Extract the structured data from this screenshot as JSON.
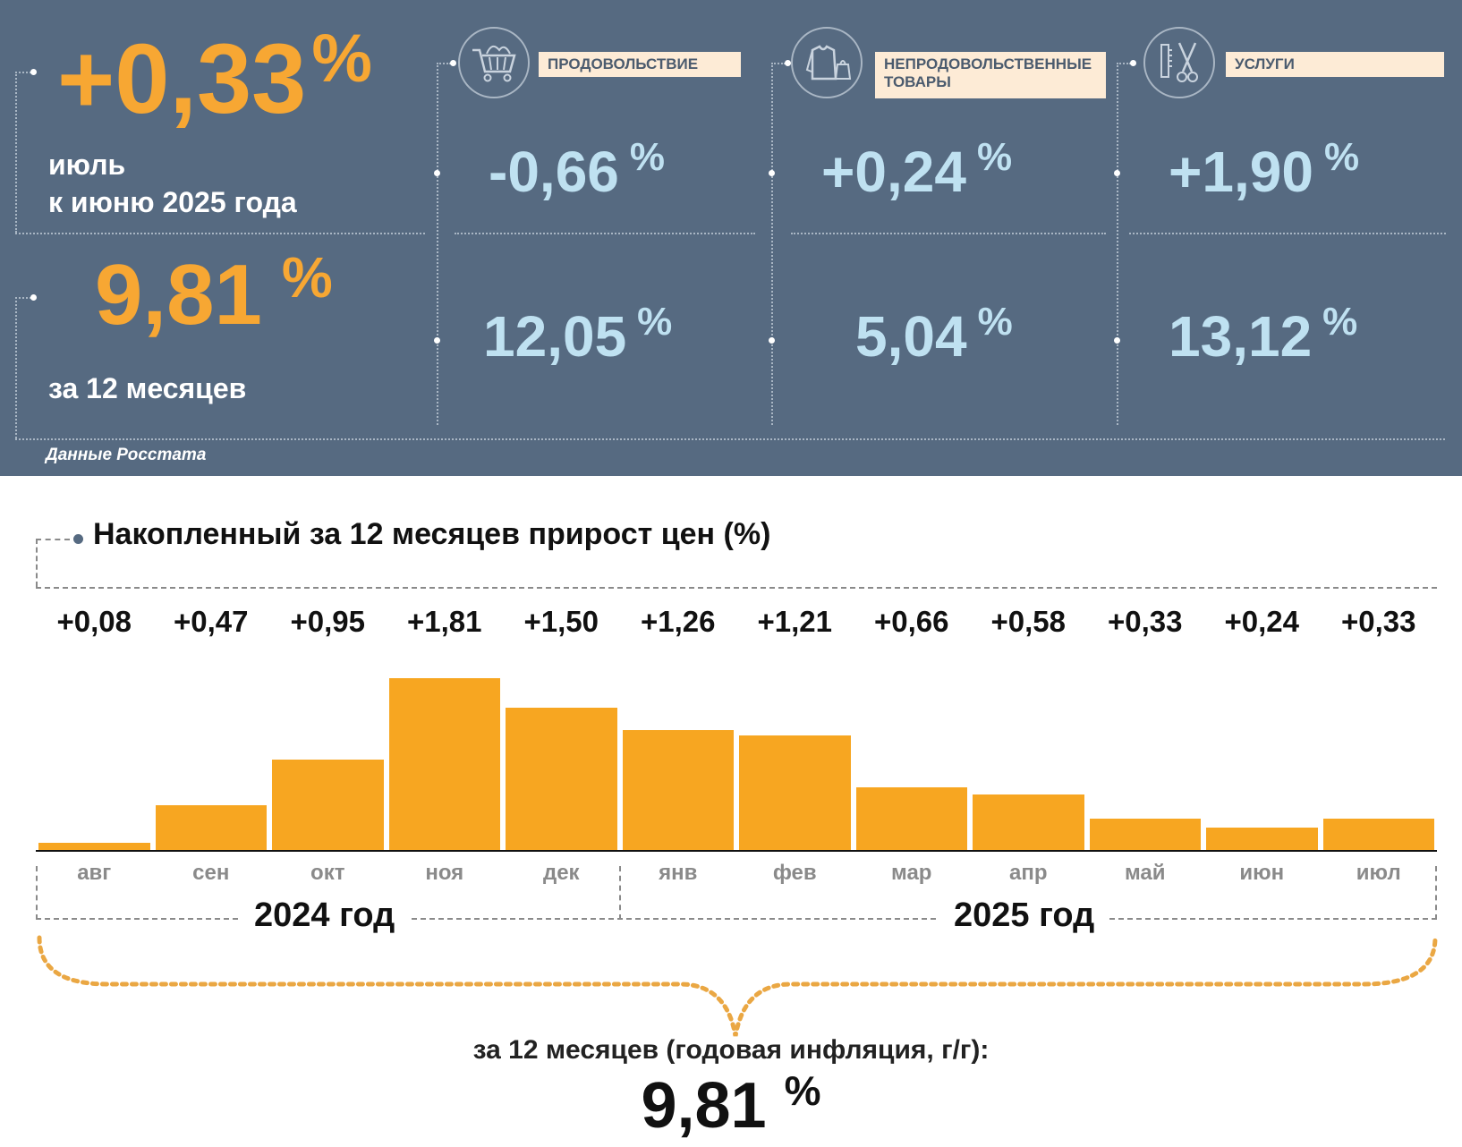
{
  "summary": {
    "monthly_value": "+0,33",
    "monthly_percent": "%",
    "monthly_caption_line1": "июль",
    "monthly_caption_line2": "к июню 2025 года",
    "annual_value": "9,81",
    "annual_percent": "%",
    "annual_caption": "за 12 месяцев",
    "source": "Данные Росстата"
  },
  "categories": [
    {
      "label": "ПРОДОВОЛЬСТВИЕ",
      "icon": "shopping-cart-icon",
      "monthly": "-0,66",
      "annual": "12,05",
      "percent": "%"
    },
    {
      "label": "НЕПРОДОВОЛЬСТВЕННЫЕ ТОВАРЫ",
      "icon": "clothing-icon",
      "monthly": "+0,24",
      "annual": "5,04",
      "percent": "%"
    },
    {
      "label": "УСЛУГИ",
      "icon": "scissors-comb-icon",
      "monthly": "+1,90",
      "annual": "13,12",
      "percent": "%"
    }
  ],
  "colors": {
    "panel": "#566a81",
    "accent_orange": "#f7a733",
    "bar": "#f7a621",
    "value_blue": "#bfe1f1",
    "label_bg": "#fdebd6"
  },
  "chart_data": {
    "type": "bar",
    "title": "Накопленный за 12 месяцев прирост цен (%)",
    "categories": [
      "авг",
      "сен",
      "окт",
      "ноя",
      "дек",
      "янв",
      "фев",
      "мар",
      "апр",
      "май",
      "июн",
      "июл"
    ],
    "values": [
      0.08,
      0.47,
      0.95,
      1.81,
      1.5,
      1.26,
      1.21,
      0.66,
      0.58,
      0.33,
      0.24,
      0.33
    ],
    "value_labels": [
      "+0,08",
      "+0,47",
      "+0,95",
      "+1,81",
      "+1,50",
      "+1,26",
      "+1,21",
      "+0,66",
      "+0,58",
      "+0,33",
      "+0,24",
      "+0,33"
    ],
    "year_groups": [
      {
        "label": "2024 год",
        "months": 5
      },
      {
        "label": "2025 год",
        "months": 7
      }
    ],
    "ylim": [
      0,
      1.81
    ],
    "grid": false,
    "total_caption": "за 12 месяцев (годовая инфляция, г/г):",
    "total_value": "9,81",
    "total_percent": "%"
  }
}
